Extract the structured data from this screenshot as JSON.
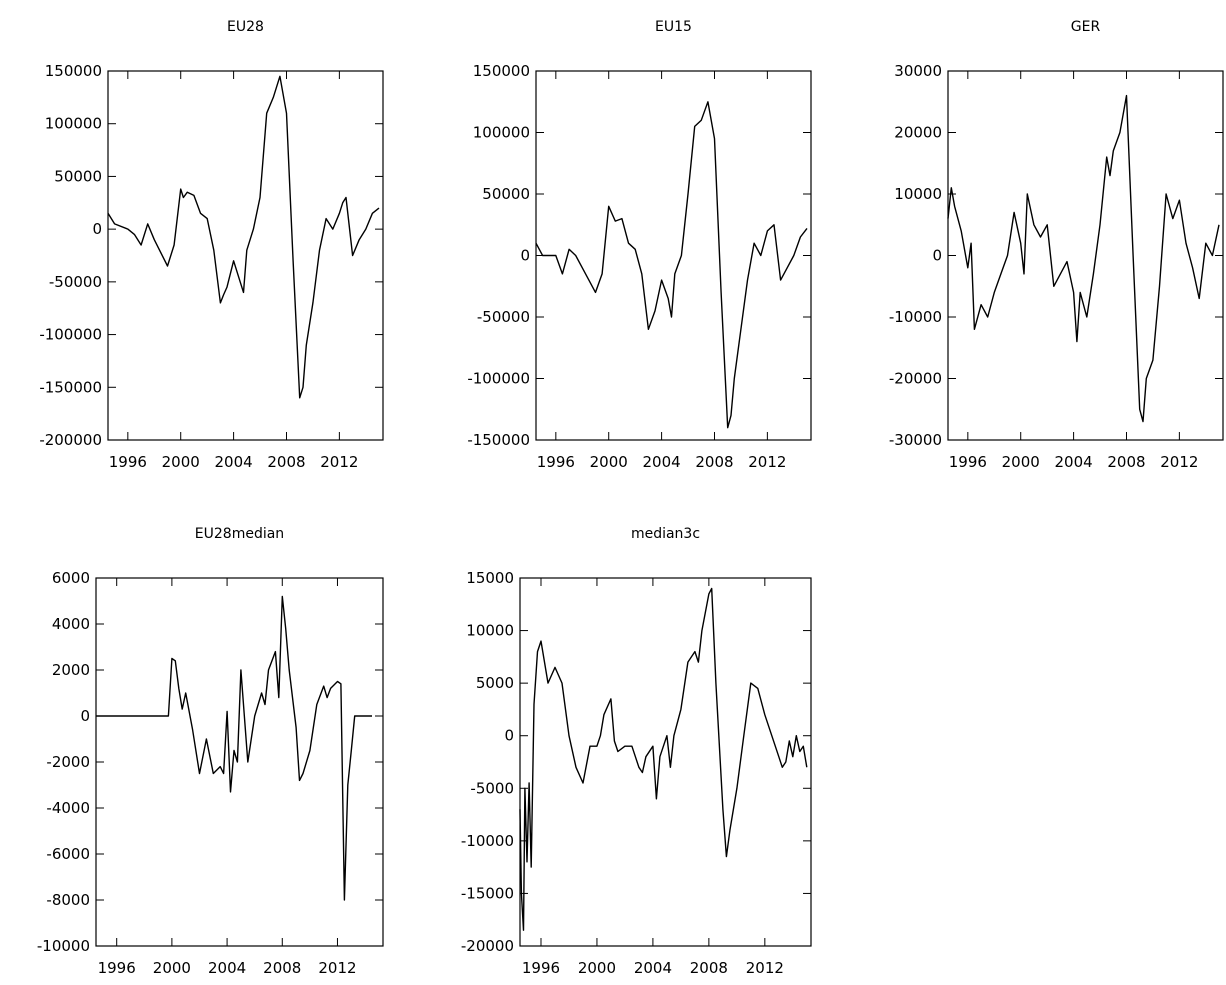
{
  "chart_data": [
    {
      "title": "EU28",
      "type": "line",
      "ylim": [
        -200000,
        150000
      ],
      "xlim": [
        1994.5,
        2015.3
      ],
      "yticks": [
        150000,
        100000,
        50000,
        0,
        -50000,
        -100000,
        -150000,
        -200000
      ],
      "ytick_labels": [
        "150000",
        "100000",
        "50000",
        "0",
        "-50000",
        "-100000",
        "-150000",
        "-200000"
      ],
      "xticks": [
        1996,
        2000,
        2004,
        2008,
        2012
      ],
      "xtick_labels": [
        "1996",
        "2000",
        "2004",
        "2008",
        "2012"
      ],
      "x": [
        1994.5,
        1995,
        1996,
        1996.5,
        1997,
        1997.5,
        1998,
        1999,
        1999.5,
        2000,
        2000.2,
        2000.5,
        2001,
        2001.5,
        2002,
        2002.5,
        2003,
        2003.25,
        2003.5,
        2004,
        2004.5,
        2004.75,
        2005,
        2005.5,
        2006,
        2006.5,
        2007,
        2007.5,
        2008,
        2008.5,
        2009,
        2009.25,
        2009.5,
        2010,
        2010.5,
        2011,
        2011.5,
        2012,
        2012.25,
        2012.5,
        2013,
        2013.5,
        2014,
        2014.5,
        2015
      ],
      "y": [
        15000,
        5000,
        0,
        -5000,
        -15000,
        5000,
        -10000,
        -35000,
        -15000,
        38000,
        30000,
        35000,
        32000,
        15000,
        10000,
        -20000,
        -70000,
        -62000,
        -55000,
        -30000,
        -50000,
        -60000,
        -20000,
        0,
        30000,
        110000,
        125000,
        145000,
        110000,
        -30000,
        -160000,
        -150000,
        -110000,
        -70000,
        -20000,
        10000,
        0,
        15000,
        25000,
        30000,
        -25000,
        -10000,
        0,
        15000,
        20000
      ]
    },
    {
      "title": "EU15",
      "type": "line",
      "ylim": [
        -150000,
        150000
      ],
      "xlim": [
        1994.5,
        2015.3
      ],
      "yticks": [
        150000,
        100000,
        50000,
        0,
        -50000,
        -100000,
        -150000
      ],
      "ytick_labels": [
        "150000",
        "100000",
        "50000",
        "0",
        "-50000",
        "-100000",
        "-150000"
      ],
      "xticks": [
        1996,
        2000,
        2004,
        2008,
        2012
      ],
      "xtick_labels": [
        "1996",
        "2000",
        "2004",
        "2008",
        "2012"
      ],
      "x": [
        1994.5,
        1995,
        1996,
        1996.5,
        1997,
        1997.5,
        1998,
        1999,
        1999.5,
        2000,
        2000.5,
        2001,
        2001.5,
        2002,
        2002.5,
        2003,
        2003.5,
        2004,
        2004.5,
        2004.75,
        2005,
        2005.5,
        2006,
        2006.5,
        2007,
        2007.5,
        2008,
        2008.5,
        2009,
        2009.25,
        2009.5,
        2010,
        2010.5,
        2011,
        2011.5,
        2012,
        2012.5,
        2013,
        2013.5,
        2014,
        2014.5,
        2015
      ],
      "y": [
        10000,
        0,
        0,
        -15000,
        5000,
        0,
        -10000,
        -30000,
        -15000,
        40000,
        28000,
        30000,
        10000,
        5000,
        -15000,
        -60000,
        -45000,
        -20000,
        -35000,
        -50000,
        -15000,
        0,
        50000,
        105000,
        110000,
        125000,
        95000,
        -30000,
        -140000,
        -130000,
        -100000,
        -60000,
        -20000,
        10000,
        0,
        20000,
        25000,
        -20000,
        -10000,
        0,
        15000,
        22000
      ]
    },
    {
      "title": "GER",
      "type": "line",
      "ylim": [
        -30000,
        30000
      ],
      "xlim": [
        1994.5,
        2015.3
      ],
      "yticks": [
        30000,
        20000,
        10000,
        0,
        -10000,
        -20000,
        -30000
      ],
      "ytick_labels": [
        "30000",
        "20000",
        "10000",
        "0",
        "-10000",
        "-20000",
        "-30000"
      ],
      "xticks": [
        1996,
        2000,
        2004,
        2008,
        2012
      ],
      "xtick_labels": [
        "1996",
        "2000",
        "2004",
        "2008",
        "2012"
      ],
      "x": [
        1994.5,
        1994.75,
        1995,
        1995.5,
        1996,
        1996.25,
        1996.5,
        1997,
        1997.5,
        1998,
        1998.5,
        1999,
        1999.5,
        2000,
        2000.25,
        2000.5,
        2001,
        2001.5,
        2002,
        2002.5,
        2003,
        2003.5,
        2004,
        2004.25,
        2004.5,
        2005,
        2005.5,
        2006,
        2006.5,
        2006.75,
        2007,
        2007.5,
        2008,
        2008.5,
        2009,
        2009.25,
        2009.5,
        2010,
        2010.5,
        2011,
        2011.5,
        2012,
        2012.5,
        2013,
        2013.5,
        2014,
        2014.5,
        2015
      ],
      "y": [
        6000,
        11000,
        8000,
        4000,
        -2000,
        2000,
        -12000,
        -8000,
        -10000,
        -6000,
        -3000,
        0,
        7000,
        2000,
        -3000,
        10000,
        5000,
        3000,
        5000,
        -5000,
        -3000,
        -1000,
        -6000,
        -14000,
        -6000,
        -10000,
        -3000,
        5000,
        16000,
        13000,
        17000,
        20000,
        26000,
        0,
        -25000,
        -27000,
        -20000,
        -17000,
        -5000,
        10000,
        6000,
        9000,
        2000,
        -2000,
        -7000,
        2000,
        0,
        5000
      ]
    },
    {
      "title": "EU28median",
      "type": "line",
      "ylim": [
        -10000,
        6000
      ],
      "xlim": [
        1994.5,
        2015.3
      ],
      "yticks": [
        6000,
        4000,
        2000,
        0,
        -2000,
        -4000,
        -6000,
        -8000,
        -10000
      ],
      "ytick_labels": [
        "6000",
        "4000",
        "2000",
        "0",
        "-2000",
        "-4000",
        "-6000",
        "-8000",
        "-10000"
      ],
      "xticks": [
        1996,
        2000,
        2004,
        2008,
        2012
      ],
      "xtick_labels": [
        "1996",
        "2000",
        "2004",
        "2008",
        "2012"
      ],
      "x": [
        1994.5,
        1995,
        1996,
        1997,
        1998,
        1999,
        1999.75,
        2000,
        2000.25,
        2000.5,
        2000.75,
        2001,
        2001.5,
        2002,
        2002.5,
        2003,
        2003.5,
        2003.75,
        2004,
        2004.25,
        2004.5,
        2004.75,
        2005,
        2005.5,
        2006,
        2006.5,
        2006.75,
        2007,
        2007.5,
        2007.75,
        2008,
        2008.25,
        2008.5,
        2009,
        2009.25,
        2009.5,
        2010,
        2010.5,
        2011,
        2011.25,
        2011.5,
        2012,
        2012.25,
        2012.5,
        2012.75,
        2013,
        2013.25,
        2013.5,
        2014,
        2014.5
      ],
      "y": [
        0,
        0,
        0,
        0,
        0,
        0,
        0,
        2500,
        2400,
        1200,
        300,
        1000,
        -600,
        -2500,
        -1000,
        -2500,
        -2200,
        -2500,
        200,
        -3300,
        -1500,
        -2000,
        2000,
        -2000,
        0,
        1000,
        500,
        2000,
        2800,
        800,
        5200,
        3800,
        2000,
        -500,
        -2800,
        -2500,
        -1500,
        500,
        1300,
        800,
        1200,
        1500,
        1400,
        -8000,
        -3000,
        -1500,
        0,
        0,
        0,
        0
      ]
    },
    {
      "title": "median3c",
      "type": "line",
      "ylim": [
        -20000,
        15000
      ],
      "xlim": [
        1994.5,
        2015.3
      ],
      "yticks": [
        15000,
        10000,
        5000,
        0,
        -5000,
        -10000,
        -15000,
        -20000
      ],
      "ytick_labels": [
        "15000",
        "10000",
        "5000",
        "0",
        "-5000",
        "-10000",
        "-15000",
        "-20000"
      ],
      "xticks": [
        1996,
        2000,
        2004,
        2008,
        2012
      ],
      "xtick_labels": [
        "1996",
        "2000",
        "2004",
        "2008",
        "2012"
      ],
      "x": [
        1994.5,
        1994.6,
        1994.75,
        1994.85,
        1995,
        1995.15,
        1995.3,
        1995.5,
        1995.75,
        1996,
        1996.5,
        1997,
        1997.5,
        1998,
        1998.5,
        1999,
        1999.5,
        2000,
        2000.25,
        2000.5,
        2001,
        2001.25,
        2001.5,
        2002,
        2002.5,
        2003,
        2003.25,
        2003.5,
        2004,
        2004.25,
        2004.5,
        2005,
        2005.25,
        2005.5,
        2006,
        2006.5,
        2007,
        2007.25,
        2007.5,
        2008,
        2008.2,
        2008.5,
        2009,
        2009.25,
        2009.5,
        2010,
        2010.5,
        2011,
        2011.5,
        2012,
        2012.5,
        2013,
        2013.25,
        2013.5,
        2013.75,
        2014,
        2014.25,
        2014.5,
        2014.75,
        2015
      ],
      "y": [
        -7000,
        -15000,
        -18500,
        -5000,
        -12000,
        -4500,
        -12500,
        3000,
        8000,
        9000,
        5000,
        6500,
        5000,
        0,
        -3000,
        -4500,
        -1000,
        -1000,
        0,
        2000,
        3500,
        -500,
        -1500,
        -1000,
        -1000,
        -3000,
        -3500,
        -2000,
        -1000,
        -6000,
        -2000,
        0,
        -3000,
        0,
        2500,
        7000,
        8000,
        7000,
        10000,
        13500,
        14000,
        5000,
        -7000,
        -11500,
        -9000,
        -5000,
        0,
        5000,
        4500,
        2000,
        0,
        -2000,
        -3000,
        -2500,
        -500,
        -2000,
        0,
        -1500,
        -1000,
        -3000
      ]
    }
  ]
}
